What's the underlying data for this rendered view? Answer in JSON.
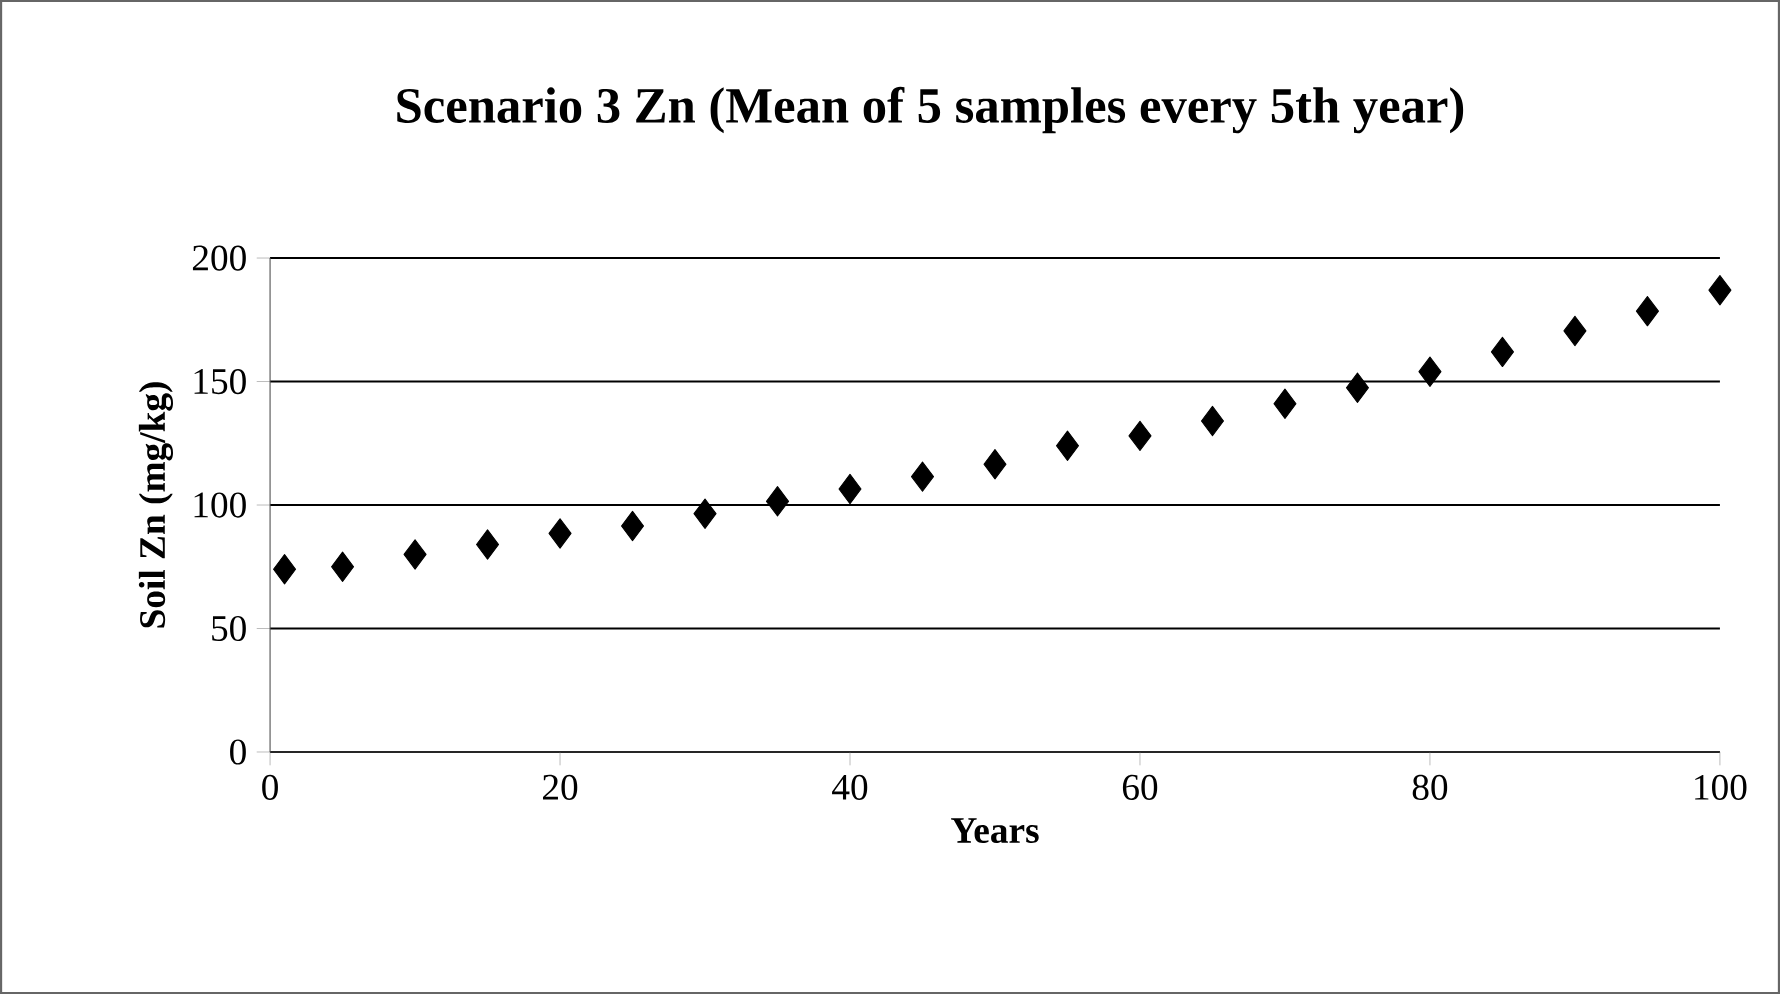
{
  "chart_data": {
    "type": "scatter",
    "title": "Scenario 3 Zn (Mean of 5 samples every 5th year)",
    "xlabel": "Years",
    "ylabel": "Soil Zn (mg/kg)",
    "x": [
      1,
      5,
      10,
      15,
      20,
      25,
      30,
      35,
      40,
      45,
      50,
      55,
      60,
      65,
      70,
      75,
      80,
      85,
      90,
      95,
      100
    ],
    "series": [
      {
        "color": "#000000",
        "values": [
          74,
          75,
          80,
          84,
          88.5,
          91.5,
          96.5,
          101.5,
          106.5,
          111.5,
          116.5,
          124,
          128,
          134,
          141,
          147.5,
          154,
          162,
          170.5,
          178.5,
          187
        ]
      }
    ],
    "marker": "diamond",
    "grid": "y",
    "legend": false,
    "xlim": [
      0,
      100
    ],
    "xticks": [
      0,
      20,
      40,
      60,
      80,
      100
    ],
    "ylim": [
      0,
      200
    ],
    "yticks": [
      0,
      50,
      100,
      150,
      200
    ]
  }
}
